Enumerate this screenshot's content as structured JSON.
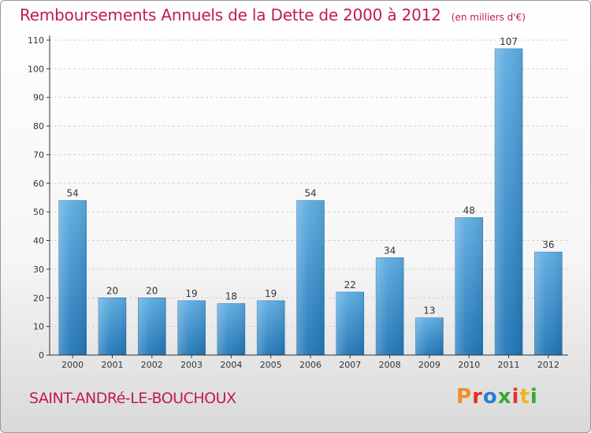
{
  "header": {
    "title": "Remboursements Annuels de la Dette de 2000 à 2012",
    "subtitle": "(en milliers d'€)"
  },
  "footer": {
    "commune": "SAINT-ANDRé-LE-BOUCHOUX",
    "brand": "Proxiti"
  },
  "colors": {
    "title": "#c2185b",
    "bar_top": "#5dade2",
    "bar_bottom": "#2176b8",
    "axis": "#333333",
    "grid": "#d0d0d0",
    "brand_letters": [
      "#f28c28",
      "#e5302a",
      "#2d7bd6",
      "#39a835",
      "#e5302a",
      "#f2b61c",
      "#39a835"
    ]
  },
  "chart_data": {
    "type": "bar",
    "title": "Remboursements Annuels de la Dette de 2000 à 2012",
    "subtitle": "(en milliers d'€)",
    "xlabel": "",
    "ylabel": "",
    "categories": [
      "2000",
      "2001",
      "2002",
      "2003",
      "2004",
      "2005",
      "2006",
      "2007",
      "2008",
      "2009",
      "2010",
      "2011",
      "2012"
    ],
    "values": [
      54,
      20,
      20,
      19,
      18,
      19,
      54,
      22,
      34,
      13,
      48,
      107,
      36
    ],
    "ylim": [
      0,
      110
    ],
    "yticks": [
      0,
      10,
      20,
      30,
      40,
      50,
      60,
      70,
      80,
      90,
      100,
      110
    ],
    "grid": "horizontal-dashed",
    "data_labels": true,
    "legend": "none"
  }
}
